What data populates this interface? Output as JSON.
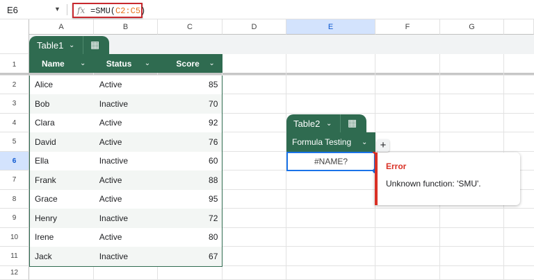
{
  "formula_bar": {
    "name_box": "E6",
    "fx": "fx",
    "formula_prefix": "=SMU(",
    "formula_ref": "C2:C5",
    "formula_suffix": ")"
  },
  "columns": [
    "A",
    "B",
    "C",
    "D",
    "E",
    "F",
    "G"
  ],
  "rows": [
    "1",
    "2",
    "3",
    "4",
    "5",
    "6",
    "7",
    "8",
    "9",
    "10",
    "11",
    "12"
  ],
  "selected_cell": "E6",
  "table1": {
    "name": "Table1",
    "headers": [
      "Name",
      "Status",
      "Score"
    ],
    "rows": [
      [
        "Alice",
        "Active",
        "85"
      ],
      [
        "Bob",
        "Inactive",
        "70"
      ],
      [
        "Clara",
        "Active",
        "92"
      ],
      [
        "David",
        "Active",
        "76"
      ],
      [
        "Ella",
        "Inactive",
        "60"
      ],
      [
        "Frank",
        "Active",
        "88"
      ],
      [
        "Grace",
        "Active",
        "95"
      ],
      [
        "Henry",
        "Inactive",
        "72"
      ],
      [
        "Irene",
        "Active",
        "80"
      ],
      [
        "Jack",
        "Inactive",
        "67"
      ]
    ]
  },
  "table2": {
    "name": "Table2",
    "header": "Formula Testing",
    "value": "#NAME?",
    "add_column": "+"
  },
  "error_tooltip": {
    "title": "Error",
    "message": "Unknown function: 'SMU'."
  },
  "colors": {
    "table_header": "#2f6b50",
    "error": "#d93025",
    "selection": "#1a73e8",
    "formula_ref": "#e8711a"
  }
}
